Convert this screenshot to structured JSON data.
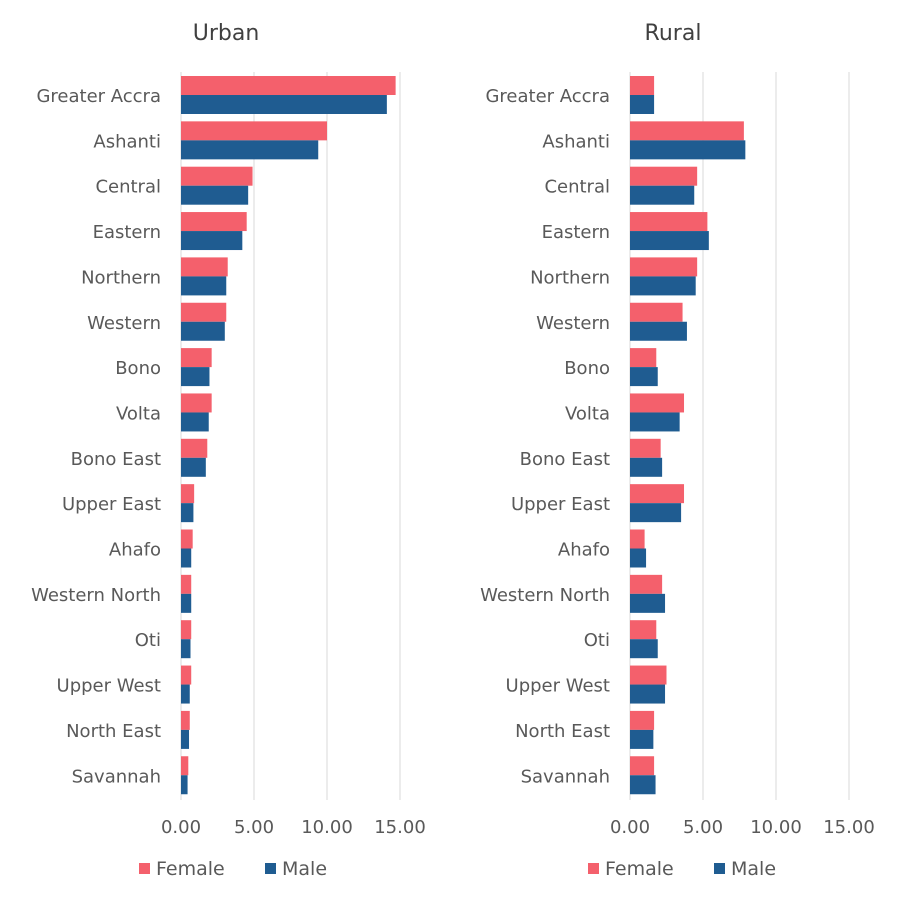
{
  "chart_data": [
    {
      "type": "bar",
      "orientation": "horizontal",
      "title": "Urban",
      "categories": [
        "Greater Accra",
        "Ashanti",
        "Central",
        "Eastern",
        "Northern",
        "Western",
        "Bono",
        "Volta",
        "Bono East",
        "Upper East",
        "Ahafo",
        "Western North",
        "Oti",
        "Upper West",
        "North East",
        "Savannah"
      ],
      "series": [
        {
          "name": "Female",
          "color": "#f4606c",
          "values": [
            14.7,
            10.0,
            4.9,
            4.5,
            3.2,
            3.1,
            2.1,
            2.1,
            1.8,
            0.9,
            0.8,
            0.7,
            0.7,
            0.7,
            0.6,
            0.5
          ]
        },
        {
          "name": "Male",
          "color": "#1f5c91",
          "values": [
            14.1,
            9.4,
            4.6,
            4.2,
            3.1,
            3.0,
            1.95,
            1.9,
            1.7,
            0.85,
            0.7,
            0.7,
            0.65,
            0.6,
            0.55,
            0.45
          ]
        }
      ],
      "xlim": [
        0,
        17.5
      ],
      "xticks": [
        "0.00",
        "5.00",
        "10.00",
        "15.00"
      ],
      "xtick_values": [
        0,
        5,
        10,
        15
      ],
      "grid": true,
      "legend": "bottom"
    },
    {
      "type": "bar",
      "orientation": "horizontal",
      "title": "Rural",
      "categories": [
        "Greater Accra",
        "Ashanti",
        "Central",
        "Eastern",
        "Northern",
        "Western",
        "Bono",
        "Volta",
        "Bono East",
        "Upper East",
        "Ahafo",
        "Western North",
        "Oti",
        "Upper West",
        "North East",
        "Savannah"
      ],
      "series": [
        {
          "name": "Female",
          "color": "#f4606c",
          "values": [
            1.65,
            7.8,
            4.6,
            5.3,
            4.6,
            3.6,
            1.8,
            3.7,
            2.1,
            3.7,
            1.0,
            2.2,
            1.8,
            2.5,
            1.65,
            1.65
          ]
        },
        {
          "name": "Male",
          "color": "#1f5c91",
          "values": [
            1.65,
            7.9,
            4.4,
            5.4,
            4.5,
            3.9,
            1.9,
            3.4,
            2.2,
            3.5,
            1.1,
            2.4,
            1.9,
            2.4,
            1.6,
            1.75
          ]
        }
      ],
      "xlim": [
        0,
        17.5
      ],
      "xticks": [
        "0.00",
        "5.00",
        "10.00",
        "15.00"
      ],
      "xtick_values": [
        0,
        5,
        10,
        15
      ],
      "grid": true,
      "legend": "bottom"
    }
  ]
}
